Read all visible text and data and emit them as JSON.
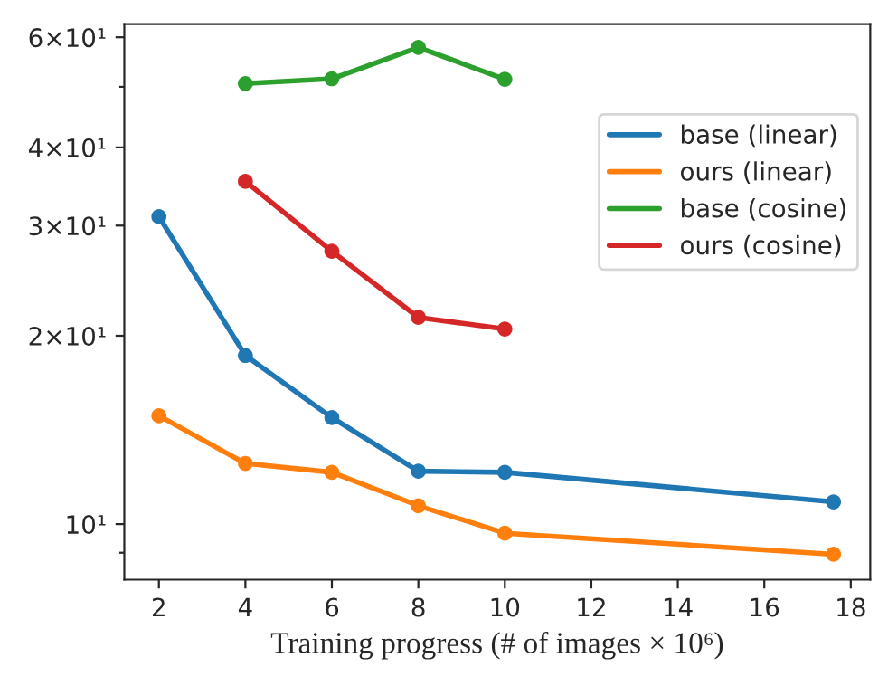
{
  "chart_data": {
    "type": "line",
    "xlabel": "Training progress (# of images × 10⁶)",
    "xlim": [
      1.2,
      18.45
    ],
    "xticks": [
      2,
      4,
      6,
      8,
      10,
      12,
      14,
      16,
      18
    ],
    "ylim": [
      8.15,
      63
    ],
    "log": true,
    "yticks": [
      {
        "value": 9,
        "label": null
      },
      {
        "value": 10,
        "label": "10¹"
      },
      {
        "value": 20,
        "label": "2×10¹"
      },
      {
        "value": 30,
        "label": "3×10¹"
      },
      {
        "value": 40,
        "label": "4×10¹"
      },
      {
        "value": 50,
        "label": null
      },
      {
        "value": 60,
        "label": "6×10¹"
      }
    ],
    "marker": "circle",
    "grid": false,
    "legend": "top right",
    "series": [
      {
        "name": "base (linear)",
        "color": "#1f77b4",
        "x": [
          2,
          4,
          6,
          8,
          10,
          17.6
        ],
        "values": [
          31.0,
          18.6,
          14.8,
          12.15,
          12.1,
          10.85
        ]
      },
      {
        "name": "ours (linear)",
        "color": "#ff7f0e",
        "x": [
          2,
          4,
          6,
          8,
          10,
          17.6
        ],
        "values": [
          14.9,
          12.5,
          12.1,
          10.7,
          9.67,
          8.95
        ]
      },
      {
        "name": "base (cosine)",
        "color": "#2ca02c",
        "x": [
          4,
          6,
          8,
          10
        ],
        "values": [
          50.6,
          51.5,
          57.8,
          51.4
        ]
      },
      {
        "name": "ours (cosine)",
        "color": "#d62728",
        "x": [
          4,
          6,
          8,
          10
        ],
        "values": [
          35.3,
          27.3,
          21.4,
          20.5
        ]
      }
    ]
  }
}
